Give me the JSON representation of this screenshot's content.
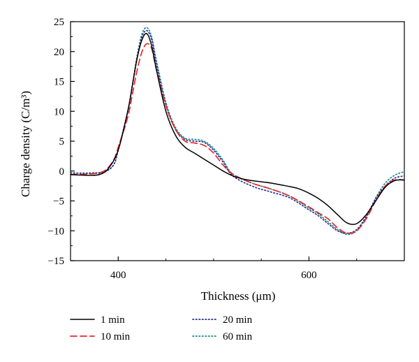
{
  "chart_data": {
    "type": "line",
    "xlabel": "Thickness (μm)",
    "ylabel": "Charge density (C/m³)",
    "xlim": [
      350,
      700
    ],
    "ylim": [
      -15,
      25
    ],
    "xticks": [
      400,
      600
    ],
    "yticks": [
      -15,
      -10,
      -5,
      0,
      5,
      10,
      15,
      20,
      25
    ],
    "legend_position": "bottom",
    "series": [
      {
        "name": "1 min",
        "color": "#000000",
        "style": "solid",
        "x": [
          350,
          365,
          380,
          390,
          400,
          410,
          415,
          420,
          425,
          430,
          435,
          440,
          450,
          460,
          470,
          480,
          490,
          500,
          510,
          520,
          530,
          540,
          550,
          560,
          570,
          580,
          590,
          600,
          610,
          620,
          630,
          640,
          650,
          660,
          670,
          680,
          690,
          700
        ],
        "y": [
          -0.6,
          -0.7,
          -0.6,
          0.5,
          3.5,
          10,
          14.5,
          19,
          22,
          23,
          21,
          17,
          10,
          6,
          4,
          3,
          2,
          1,
          0,
          -0.8,
          -1.3,
          -1.6,
          -1.8,
          -2,
          -2.3,
          -2.6,
          -3,
          -3.7,
          -4.6,
          -5.8,
          -7.3,
          -8.7,
          -8.8,
          -7.3,
          -5,
          -2.7,
          -1.6,
          -1.5
        ]
      },
      {
        "name": "10 min",
        "color": "#e8252b",
        "style": "dashed",
        "x": [
          350,
          370,
          385,
          395,
          400,
          410,
          415,
          420,
          425,
          430,
          435,
          440,
          450,
          460,
          470,
          480,
          490,
          500,
          510,
          520,
          540,
          560,
          580,
          600,
          610,
          620,
          630,
          640,
          650,
          660,
          670,
          680,
          690,
          700
        ],
        "y": [
          -0.6,
          -0.5,
          0,
          1.8,
          4,
          9,
          13,
          17,
          20,
          21.3,
          20.5,
          17,
          11,
          7,
          5,
          4.7,
          4.3,
          3,
          1,
          -0.5,
          -2,
          -3,
          -4.2,
          -6,
          -7,
          -8,
          -9.5,
          -10.4,
          -10,
          -8,
          -5,
          -2.5,
          -1.5,
          -1.5
        ]
      },
      {
        "name": "20 min",
        "color": "#2b2f8c",
        "style": "dotted",
        "x": [
          350,
          370,
          385,
          395,
          400,
          410,
          415,
          420,
          425,
          430,
          435,
          440,
          450,
          460,
          470,
          480,
          490,
          500,
          510,
          520,
          540,
          560,
          580,
          600,
          610,
          620,
          630,
          640,
          650,
          660,
          670,
          680,
          690,
          700
        ],
        "y": [
          -0.3,
          -0.4,
          -0.2,
          1,
          3.5,
          10,
          14.5,
          19,
          22.5,
          23.5,
          22,
          18,
          11,
          7,
          5.3,
          5,
          4.8,
          3.5,
          1.5,
          -0.8,
          -2.5,
          -3.5,
          -4.5,
          -6.5,
          -7.5,
          -8.8,
          -10,
          -10.4,
          -9.8,
          -7.6,
          -4.6,
          -2.5,
          -1.2,
          -0.8
        ]
      },
      {
        "name": "60 min",
        "color": "#1f8a8a",
        "style": "dotted",
        "x": [
          350,
          370,
          385,
          395,
          400,
          410,
          415,
          420,
          425,
          430,
          435,
          440,
          450,
          460,
          470,
          480,
          490,
          500,
          510,
          520,
          540,
          560,
          580,
          600,
          610,
          620,
          630,
          640,
          650,
          660,
          670,
          680,
          690,
          700
        ],
        "y": [
          -0.4,
          -0.3,
          -0.1,
          1,
          3.5,
          10,
          14.5,
          19.5,
          23,
          24,
          22.5,
          18.5,
          11.5,
          7.3,
          5.5,
          5.3,
          5,
          3.8,
          1.8,
          -0.5,
          -2,
          -3,
          -4.2,
          -6.2,
          -7.2,
          -8.5,
          -9.8,
          -10.6,
          -10,
          -7.8,
          -4.5,
          -2,
          -0.7,
          -0.1
        ]
      }
    ]
  }
}
